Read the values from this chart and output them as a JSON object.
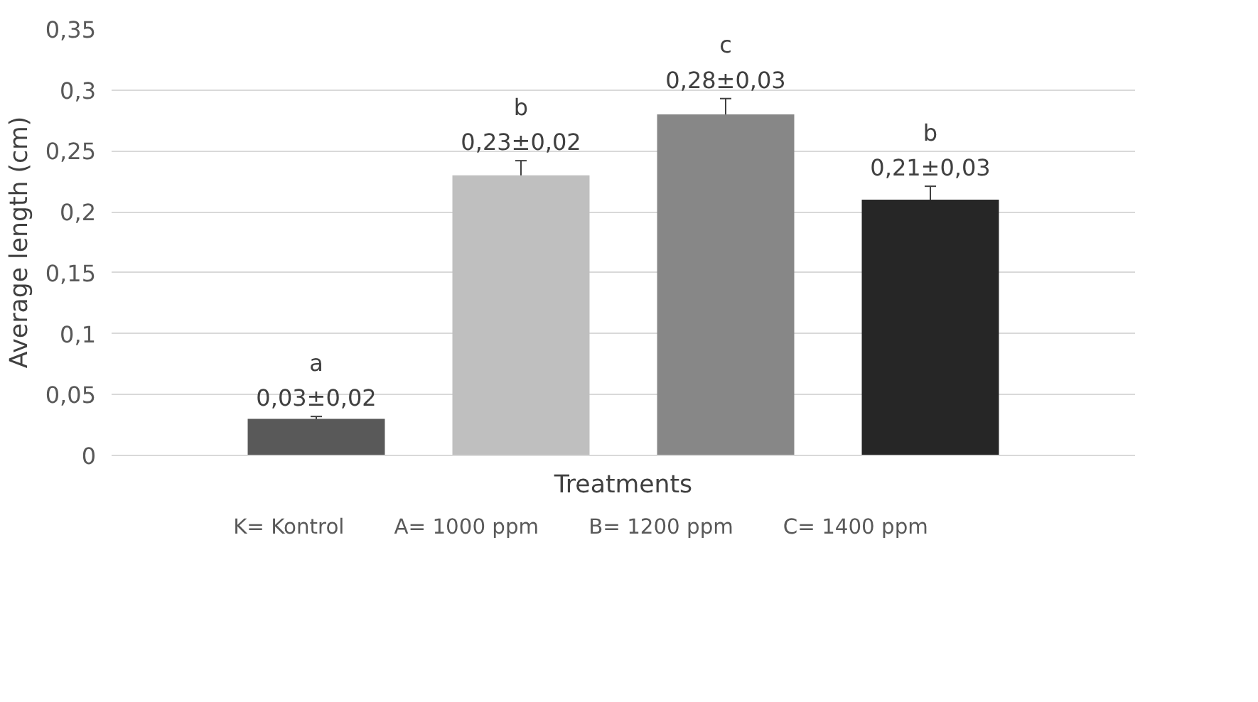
{
  "chart_data": {
    "type": "bar",
    "xlabel": "Treatments",
    "ylabel": "Average length (cm)",
    "categories": [
      null
    ],
    "series": [
      {
        "name": "K= Kontrol",
        "color": "#595959",
        "values": [
          0.03
        ],
        "errors": [
          0.002
        ],
        "value_labels": [
          "a\n0,03±0,02"
        ]
      },
      {
        "name": "A= 1000 ppm",
        "color": "#bfbfbf",
        "values": [
          0.23
        ],
        "errors": [
          0.012
        ],
        "value_labels": [
          "b\n0,23±0,02"
        ]
      },
      {
        "name": "B= 1200 ppm",
        "color": "#878787",
        "values": [
          0.28
        ],
        "errors": [
          0.013
        ],
        "value_labels": [
          "c\n0,28±0,03"
        ]
      },
      {
        "name": "C= 1400 ppm",
        "color": "#262626",
        "values": [
          0.21
        ],
        "errors": [
          0.011
        ],
        "value_labels": [
          "b\n0,21±0,03"
        ]
      }
    ],
    "ylim": [
      0,
      0.35
    ],
    "yticks": [
      0,
      {
        "value": 0.05,
        "label": "0,05"
      },
      {
        "value": 0.1,
        "label": "0,1"
      },
      {
        "value": 0.15,
        "label": "0,15"
      },
      {
        "value": 0.2,
        "label": "0,2"
      },
      {
        "value": 0.25,
        "label": "0,25"
      },
      {
        "value": 0.3,
        "label": "0,3"
      },
      {
        "value": 0.35,
        "label": "0,35"
      }
    ],
    "grid": "y",
    "legend": "bottom"
  }
}
